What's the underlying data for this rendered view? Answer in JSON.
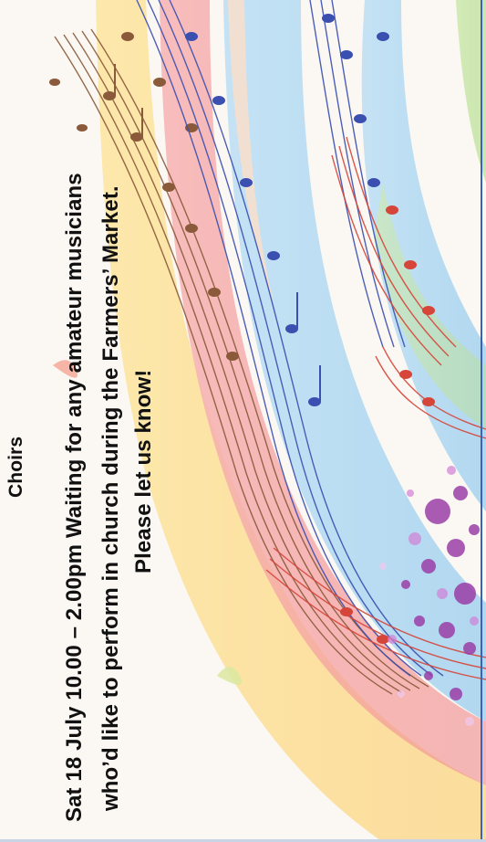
{
  "heading": "Choirs",
  "announcement": {
    "line1": "Sat 18 July 10.00 – 2.00pm Waiting for any amateur musicians",
    "line2": "who’d like to perform in church during the Farmers’ Market.",
    "line3": "Please let us know!"
  },
  "colors": {
    "frame": "#3a62b8",
    "brown_notes": "#8a5a3a",
    "blue_notes": "#3a4fb0",
    "red_notes": "#d6453a",
    "splash": "#9b3fa8"
  },
  "artwork": "music-notes-swirl"
}
